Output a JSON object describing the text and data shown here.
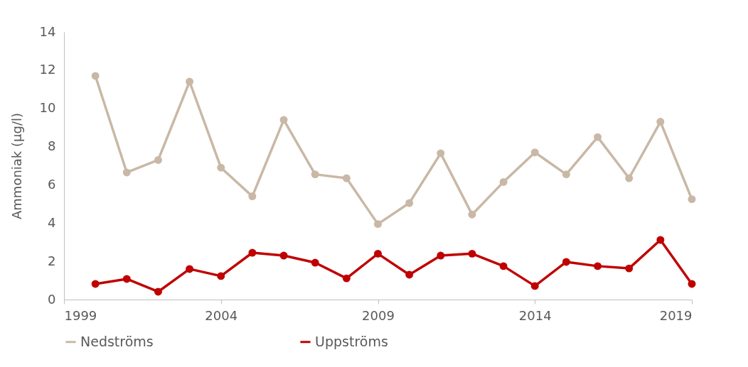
{
  "chart_data": {
    "type": "line",
    "ylabel": "Ammoniak (µg/l)",
    "x": [
      2000,
      2001,
      2002,
      2003,
      2004,
      2005,
      2006,
      2007,
      2008,
      2009,
      2010,
      2011,
      2012,
      2013,
      2014,
      2015,
      2016,
      2017,
      2018,
      2019
    ],
    "series": [
      {
        "name": "Nedströms",
        "color": "#c9b8a6",
        "values": [
          11.7,
          6.65,
          7.3,
          11.4,
          6.9,
          5.4,
          9.4,
          6.55,
          6.35,
          3.95,
          5.05,
          7.65,
          4.45,
          6.15,
          7.7,
          6.55,
          8.5,
          6.35,
          9.3,
          5.25
        ]
      },
      {
        "name": "Uppströms",
        "color": "#c00000",
        "values": [
          0.82,
          1.08,
          0.41,
          1.6,
          1.23,
          2.45,
          2.3,
          1.93,
          1.11,
          2.4,
          1.3,
          2.3,
          2.4,
          1.75,
          0.71,
          1.97,
          1.75,
          1.63,
          3.12,
          0.82
        ]
      }
    ],
    "xlim": [
      1999,
      2019
    ],
    "xticks": [
      1999,
      2004,
      2009,
      2014,
      2019
    ],
    "ylim": [
      0,
      14
    ],
    "yticks": [
      0,
      2,
      4,
      6,
      8,
      10,
      12,
      14
    ],
    "grid": false,
    "legend": "bottom",
    "marker": "circle",
    "line_style": "solid"
  }
}
